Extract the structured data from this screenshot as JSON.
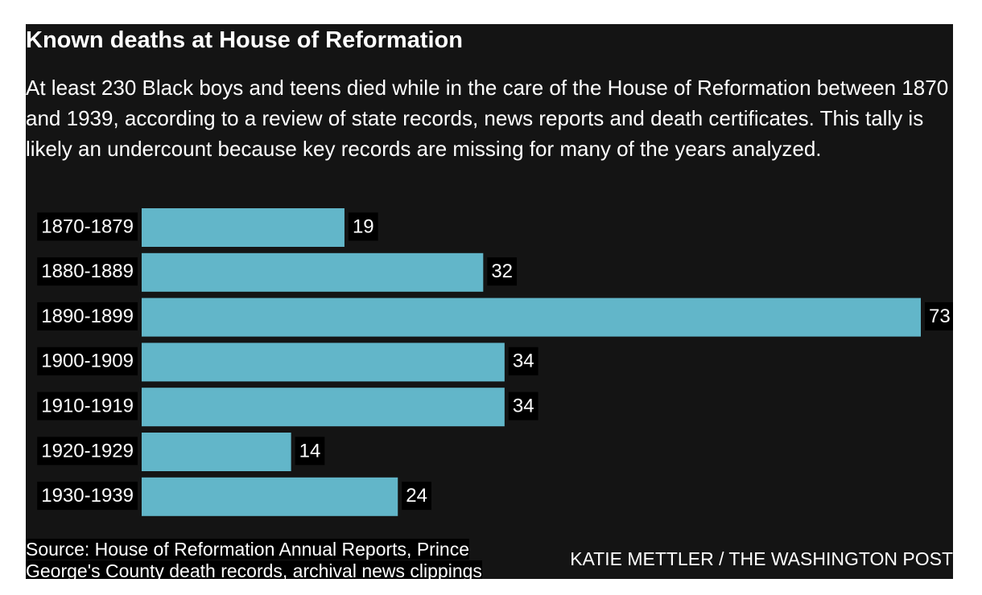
{
  "chart_data": {
    "type": "bar",
    "orientation": "horizontal",
    "title": "Known deaths at House of Reformation",
    "subtitle": "At least 230 Black boys and teens died while in the care of the House of Reformation between 1870 and 1939, according to a review of state records, news reports and death certificates. This tally is likely an undercount because key records are missing for many of the years analyzed.",
    "categories": [
      "1870-1879",
      "1880-1889",
      "1890-1899",
      "1900-1909",
      "1910-1919",
      "1920-1929",
      "1930-1939"
    ],
    "values": [
      19,
      32,
      73,
      34,
      34,
      14,
      24
    ],
    "color": "#62b6c9",
    "source": "Source: House of Reformation Annual Reports, Prince George's County death records, archival news clippings",
    "credit": "KATIE METTLER / THE WASHINGTON POST"
  }
}
